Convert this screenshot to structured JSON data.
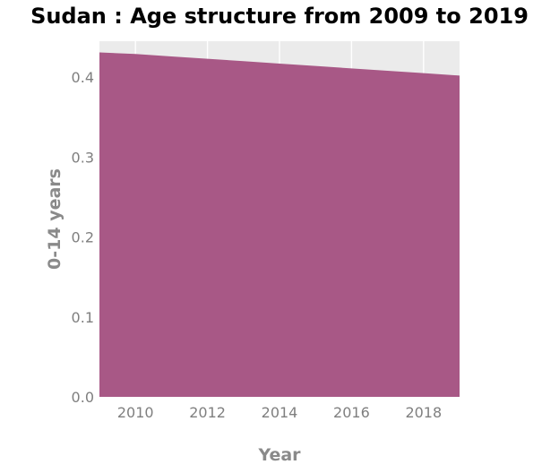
{
  "chart_data": {
    "type": "area",
    "title": "Sudan : Age structure from 2009 to 2019",
    "xlabel": "Year",
    "ylabel": "0-14 years",
    "x": [
      2009,
      2010,
      2011,
      2012,
      2013,
      2014,
      2015,
      2016,
      2017,
      2018,
      2019
    ],
    "series": [
      {
        "name": "",
        "values": [
          0.431,
          0.429,
          0.426,
          0.423,
          0.42,
          0.417,
          0.414,
          0.411,
          0.408,
          0.405,
          0.402
        ]
      }
    ],
    "xlim": [
      2009,
      2019
    ],
    "ylim": [
      0.0,
      0.445
    ],
    "xticks": [
      "2010",
      "2012",
      "2014",
      "2016",
      "2018"
    ],
    "yticks": [
      "0.0",
      "0.1",
      "0.2",
      "0.3",
      "0.4"
    ],
    "grid": true,
    "legend": "none",
    "colors": {
      "fill": "#a85886",
      "plot_background": "#ebebeb",
      "grid": "#ffffff"
    }
  }
}
